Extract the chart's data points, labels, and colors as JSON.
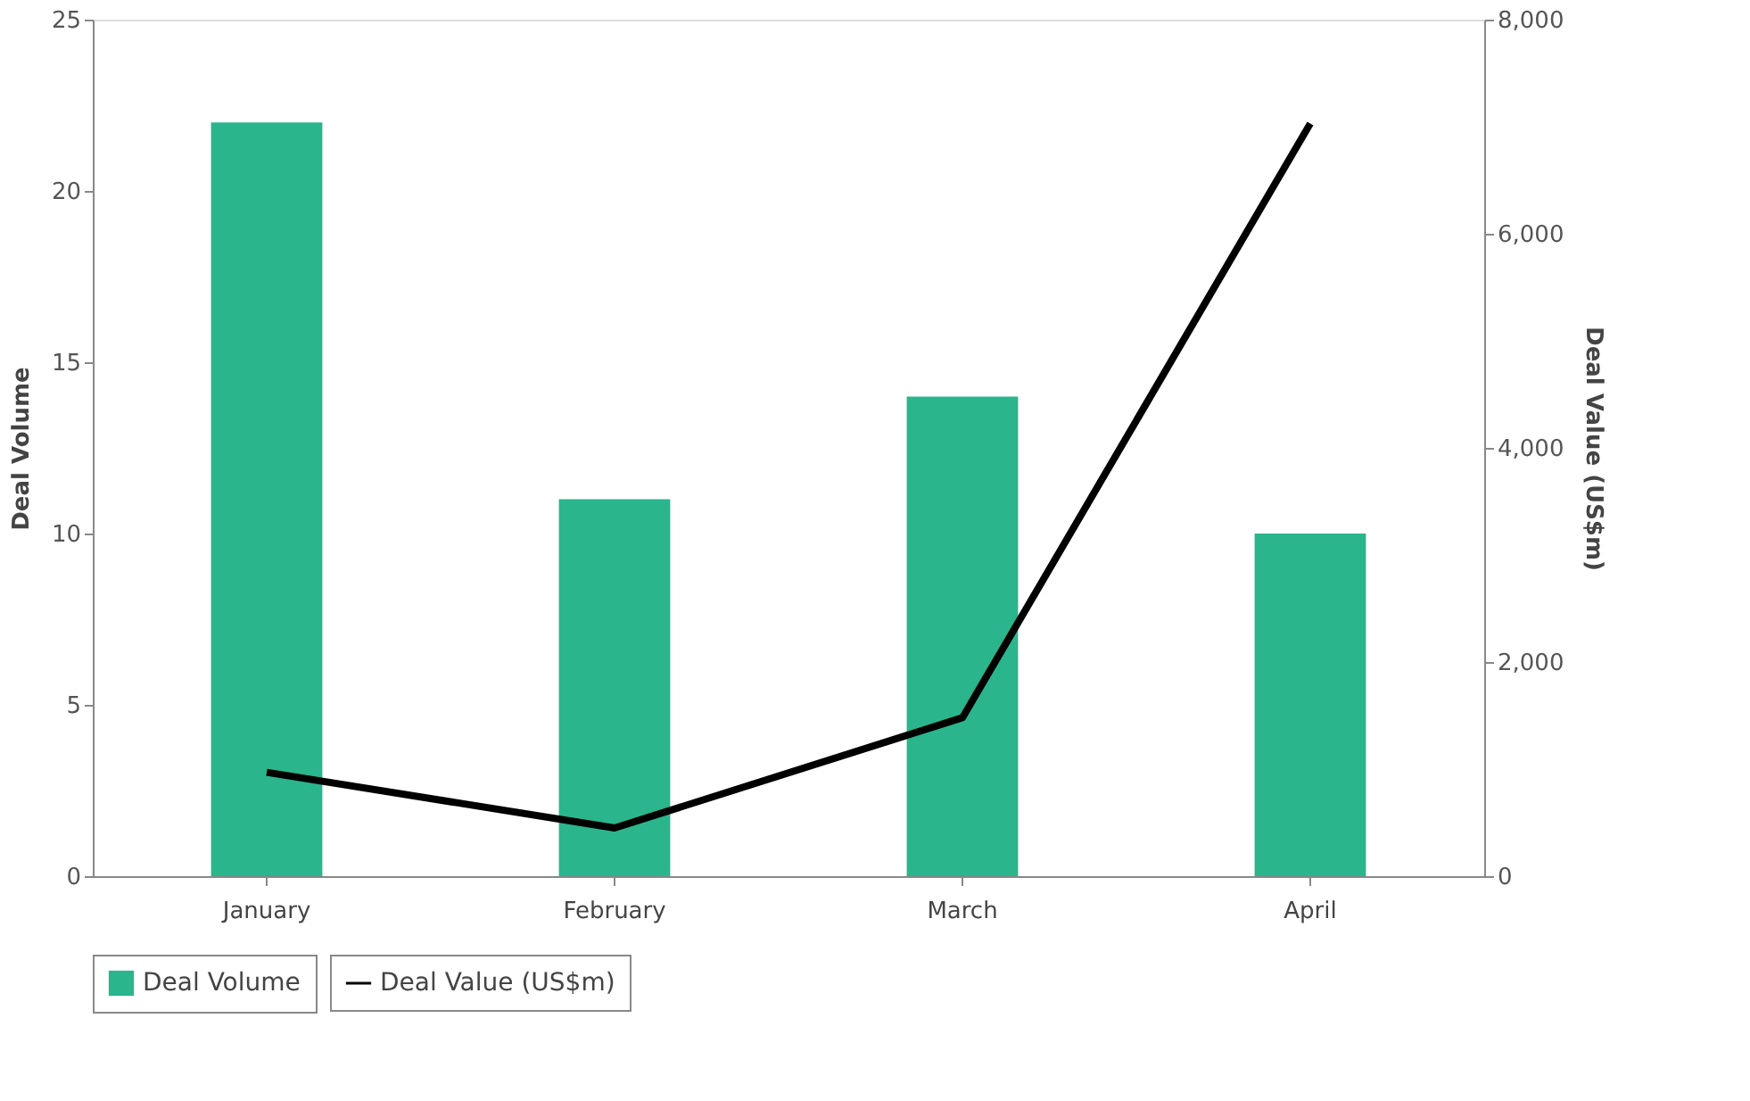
{
  "chart_data": {
    "type": "bar",
    "categories": [
      "January",
      "February",
      "March",
      "April"
    ],
    "series": [
      {
        "name": "Deal Volume",
        "color": "#2bb58c",
        "values": [
          22,
          11,
          14,
          10
        ]
      },
      {
        "name": "Deal Value (US$m)",
        "type": "line",
        "axis": "y2",
        "color": "#000000",
        "values": [
          970,
          450,
          1480,
          7030
        ]
      }
    ],
    "ylabel": "Deal Volume",
    "y2label": "Deal Value (US$m)",
    "ylim": [
      0,
      25
    ],
    "yticks": [
      0,
      5,
      10,
      15,
      20,
      25
    ],
    "y2lim": [
      0,
      8000
    ],
    "y2ticks": [
      0,
      {
        "value": 2000,
        "label": "2,000"
      },
      {
        "value": 4000,
        "label": "4,000"
      },
      {
        "value": 6000,
        "label": "6,000"
      },
      {
        "value": 8000,
        "label": "8,000"
      }
    ],
    "grid": false,
    "legend": "bottom",
    "marker": "none",
    "line_style": "solid"
  }
}
